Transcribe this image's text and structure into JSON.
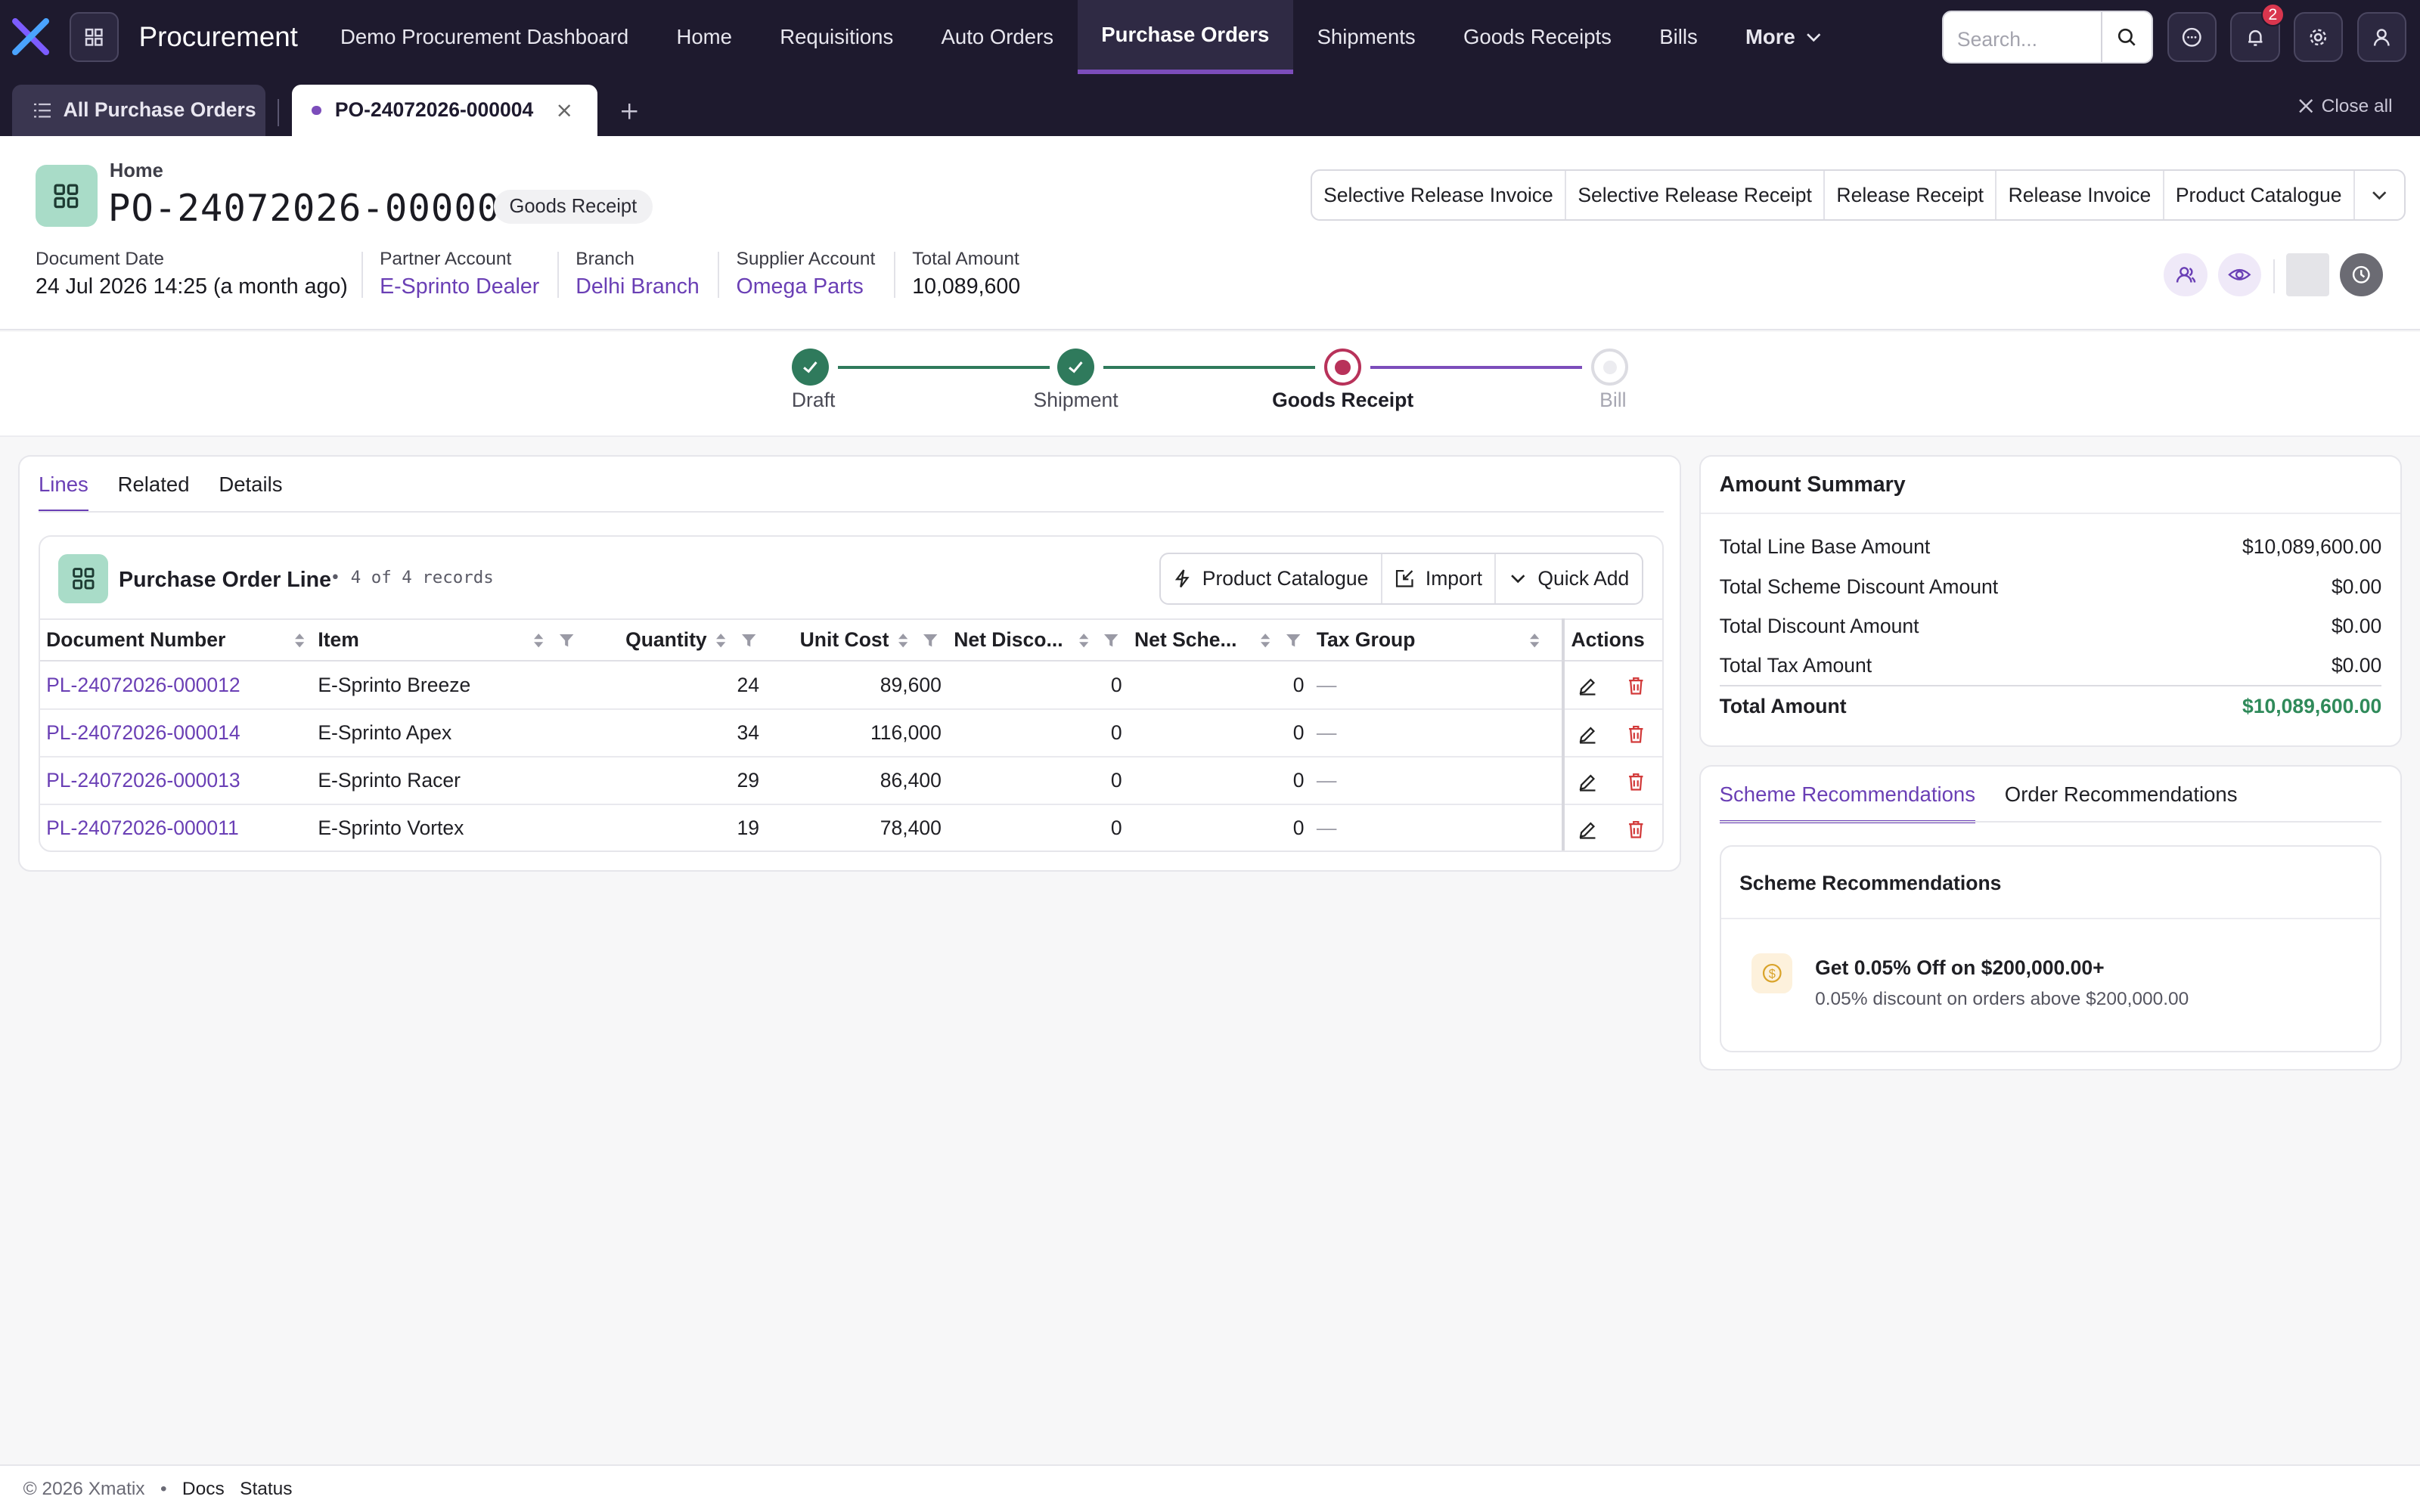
{
  "app": {
    "title": "Procurement"
  },
  "nav": {
    "items": [
      {
        "label": "Demo Procurement Dashboard"
      },
      {
        "label": "Home"
      },
      {
        "label": "Requisitions"
      },
      {
        "label": "Auto Orders"
      },
      {
        "label": "Purchase Orders",
        "active": true
      },
      {
        "label": "Shipments"
      },
      {
        "label": "Goods Receipts"
      },
      {
        "label": "Bills"
      },
      {
        "label": "More"
      }
    ],
    "search_placeholder": "Search...",
    "notification_count": "2"
  },
  "tabs": {
    "list_tab": "All Purchase Orders",
    "doc_tab": "PO-24072026-000004",
    "close_all": "Close all"
  },
  "header": {
    "breadcrumb": "Home",
    "title": "PO-24072026-000004",
    "status": "Goods Receipt",
    "actions": [
      "Selective Release Invoice",
      "Selective Release Receipt",
      "Release Receipt",
      "Release Invoice",
      "Product Catalogue"
    ],
    "meta": [
      {
        "label": "Document Date",
        "value": "24 Jul 2026 14:25 (a month ago)"
      },
      {
        "label": "Partner Account",
        "value": "E-Sprinto Dealer"
      },
      {
        "label": "Branch",
        "value": "Delhi Branch"
      },
      {
        "label": "Supplier Account",
        "value": "Omega Parts"
      },
      {
        "label": "Total Amount",
        "value": "10,089,600"
      }
    ]
  },
  "stepper": {
    "steps": [
      {
        "label": "Draft",
        "state": "done"
      },
      {
        "label": "Shipment",
        "state": "done"
      },
      {
        "label": "Goods Receipt",
        "state": "current"
      },
      {
        "label": "Bill",
        "state": "pending"
      }
    ]
  },
  "lines": {
    "tabs": [
      "Lines",
      "Related",
      "Details"
    ],
    "card_title": "Purchase Order Line",
    "record_count": "• 4 of 4 records",
    "buttons": [
      "Product Catalogue",
      "Import",
      "Quick Add"
    ],
    "columns": [
      "Document Number",
      "Item",
      "Quantity",
      "Unit Cost",
      "Net Disco...",
      "Net Sche...",
      "Tax Group",
      "Actions"
    ],
    "rows": [
      {
        "doc": "PL-24072026-000012",
        "item": "E-Sprinto Breeze",
        "qty": "24",
        "cost": "89,600",
        "disc": "0",
        "sch": "0",
        "tax": "—"
      },
      {
        "doc": "PL-24072026-000014",
        "item": "E-Sprinto Apex",
        "qty": "34",
        "cost": "116,000",
        "disc": "0",
        "sch": "0",
        "tax": "—"
      },
      {
        "doc": "PL-24072026-000013",
        "item": "E-Sprinto Racer",
        "qty": "29",
        "cost": "86,400",
        "disc": "0",
        "sch": "0",
        "tax": "—"
      },
      {
        "doc": "PL-24072026-000011",
        "item": "E-Sprinto Vortex",
        "qty": "19",
        "cost": "78,400",
        "disc": "0",
        "sch": "0",
        "tax": "—"
      }
    ]
  },
  "summary": {
    "title": "Amount Summary",
    "rows": [
      {
        "label": "Total Line Base Amount",
        "value": "$10,089,600.00"
      },
      {
        "label": "Total Scheme Discount Amount",
        "value": "$0.00"
      },
      {
        "label": "Total Discount Amount",
        "value": "$0.00"
      },
      {
        "label": "Total Tax Amount",
        "value": "$0.00"
      }
    ],
    "total_label": "Total Amount",
    "total_value": "$10,089,600.00",
    "total_color": "#2f8a5a"
  },
  "recommendations": {
    "tabs": [
      "Scheme Recommendations",
      "Order Recommendations"
    ],
    "card_title": "Scheme Recommendations",
    "item_title": "Get 0.05% Off on $200,000.00+",
    "item_desc": "0.05% discount on orders above $200,000.00"
  },
  "footer": {
    "copyright": "© 2026 Xmatix",
    "sep": "•",
    "links": [
      "Docs",
      "Status"
    ]
  },
  "colors": {
    "accent": "#6a3fb5",
    "nav_bg": "#1e1a2e",
    "done": "#2f7a5c",
    "current": "#b8325a"
  }
}
